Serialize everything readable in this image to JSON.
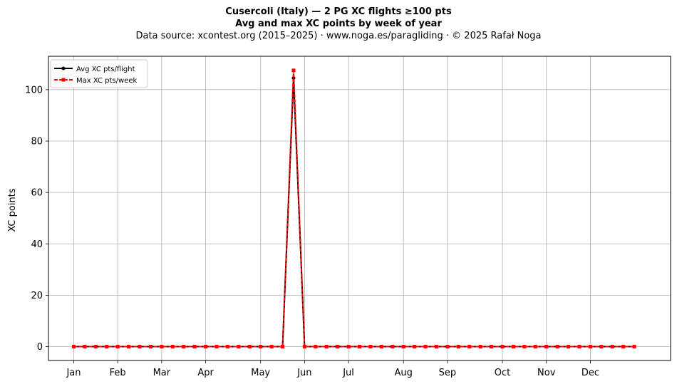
{
  "chart_data": {
    "type": "line",
    "title": "Cusercoli (Italy)  —  2 PG XC flights ≥100 pts",
    "subtitle": "Avg and max XC points by week of year",
    "source_line": "Data source: xcontest.org (2015–2025)  ·  www.noga.es/paragliding  ·  © 2025 Rafał Noga",
    "xlabel": "",
    "ylabel": "XC points",
    "x_tick_labels": [
      "Jan",
      "Feb",
      "Mar",
      "Apr",
      "May",
      "Jun",
      "Jul",
      "Aug",
      "Sep",
      "Oct",
      "Nov",
      "Dec"
    ],
    "x_tick_weeks": [
      1,
      5,
      9,
      13,
      18,
      22,
      26,
      31,
      35,
      40,
      44,
      48
    ],
    "xlim": [
      -1.3,
      55.3
    ],
    "ylim": [
      -5.4,
      113
    ],
    "y_ticks": [
      0,
      20,
      40,
      60,
      80,
      100
    ],
    "grid": true,
    "legend_position": "top-left",
    "weeks": [
      1,
      2,
      3,
      4,
      5,
      6,
      7,
      8,
      9,
      10,
      11,
      12,
      13,
      14,
      15,
      16,
      17,
      18,
      19,
      20,
      21,
      22,
      23,
      24,
      25,
      26,
      27,
      28,
      29,
      30,
      31,
      32,
      33,
      34,
      35,
      36,
      37,
      38,
      39,
      40,
      41,
      42,
      43,
      44,
      45,
      46,
      47,
      48,
      49,
      50,
      51,
      52
    ],
    "series": [
      {
        "name": "Avg XC pts/flight",
        "color": "#000000",
        "style": "solid-circle",
        "values": [
          0,
          0,
          0,
          0,
          0,
          0,
          0,
          0,
          0,
          0,
          0,
          0,
          0,
          0,
          0,
          0,
          0,
          0,
          0,
          0,
          104.5,
          0,
          0,
          0,
          0,
          0,
          0,
          0,
          0,
          0,
          0,
          0,
          0,
          0,
          0,
          0,
          0,
          0,
          0,
          0,
          0,
          0,
          0,
          0,
          0,
          0,
          0,
          0,
          0,
          0,
          0,
          0
        ]
      },
      {
        "name": "Max XC pts/week",
        "color": "#ff0000",
        "style": "dashed-square",
        "values": [
          0,
          0,
          0,
          0,
          0,
          0,
          0,
          0,
          0,
          0,
          0,
          0,
          0,
          0,
          0,
          0,
          0,
          0,
          0,
          0,
          107.5,
          0,
          0,
          0,
          0,
          0,
          0,
          0,
          0,
          0,
          0,
          0,
          0,
          0,
          0,
          0,
          0,
          0,
          0,
          0,
          0,
          0,
          0,
          0,
          0,
          0,
          0,
          0,
          0,
          0,
          0,
          0
        ]
      }
    ]
  }
}
